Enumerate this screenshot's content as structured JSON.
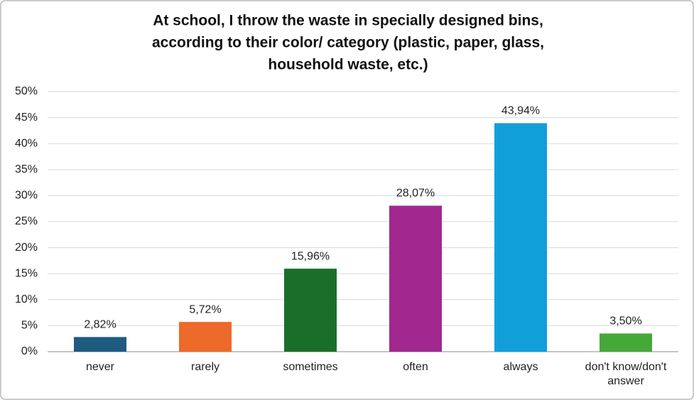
{
  "chart_data": {
    "type": "bar",
    "title": [
      "At school, I throw the waste in specially designed bins,",
      "according to their color/ category (plastic, paper, glass,",
      "household waste, etc.)"
    ],
    "categories": [
      "never",
      "rarely",
      "sometimes",
      "often",
      "always",
      "don't know/don't answer"
    ],
    "values": [
      2.82,
      5.72,
      15.96,
      28.07,
      43.94,
      3.5
    ],
    "value_labels": [
      "2,82%",
      "5,72%",
      "15,96%",
      "28,07%",
      "43,94%",
      "3,50%"
    ],
    "colors": [
      "#1f5b80",
      "#ed6a2a",
      "#1a6e2a",
      "#a0288f",
      "#119fd9",
      "#47a83a"
    ],
    "ylim": [
      0,
      50
    ],
    "yticks": [
      {
        "value": 0,
        "label": "0%"
      },
      {
        "value": 5,
        "label": "5%"
      },
      {
        "value": 10,
        "label": "10%"
      },
      {
        "value": 15,
        "label": "15%"
      },
      {
        "value": 20,
        "label": "20%"
      },
      {
        "value": 25,
        "label": "25%"
      },
      {
        "value": 30,
        "label": "30%"
      },
      {
        "value": 35,
        "label": "35%"
      },
      {
        "value": 40,
        "label": "40%"
      },
      {
        "value": 45,
        "label": "45%"
      },
      {
        "value": 50,
        "label": "50%"
      }
    ],
    "grid": true
  }
}
